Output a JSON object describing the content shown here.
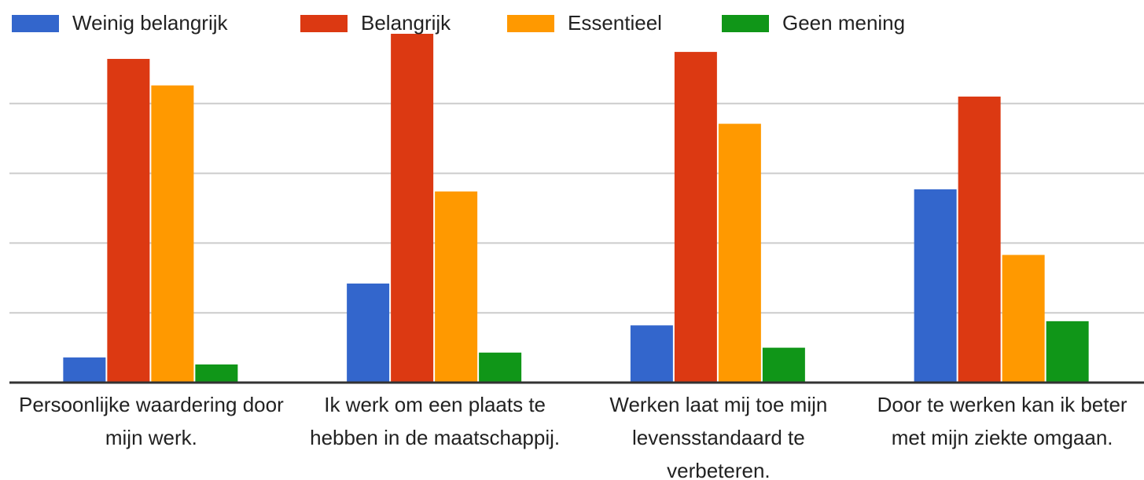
{
  "chart_data": {
    "type": "bar",
    "categories": [
      "Persoonlijke waardering door mijn werk.",
      "Ik werk om een plaats te hebben in de maatschappij.",
      "Werken laat mij toe mijn levensstandaard te verbeteren.",
      "Door te werken kan ik beter met mijn ziekte omgaan."
    ],
    "series": [
      {
        "name": "Weinig belangrijk",
        "color": "#3366cc",
        "values": [
          0.36,
          1.42,
          0.82,
          2.77
        ]
      },
      {
        "name": "Belangrijk",
        "color": "#dc3912",
        "values": [
          4.64,
          5.0,
          4.74,
          4.1
        ]
      },
      {
        "name": "Essentieel",
        "color": "#ff9900",
        "values": [
          4.26,
          2.74,
          3.71,
          1.83
        ]
      },
      {
        "name": "Geen mening",
        "color": "#109618",
        "values": [
          0.26,
          0.43,
          0.5,
          0.88
        ]
      }
    ],
    "ylim": [
      0,
      5
    ],
    "yticks": [
      0,
      1,
      2,
      3,
      4
    ],
    "grid": true,
    "legend": "top"
  }
}
